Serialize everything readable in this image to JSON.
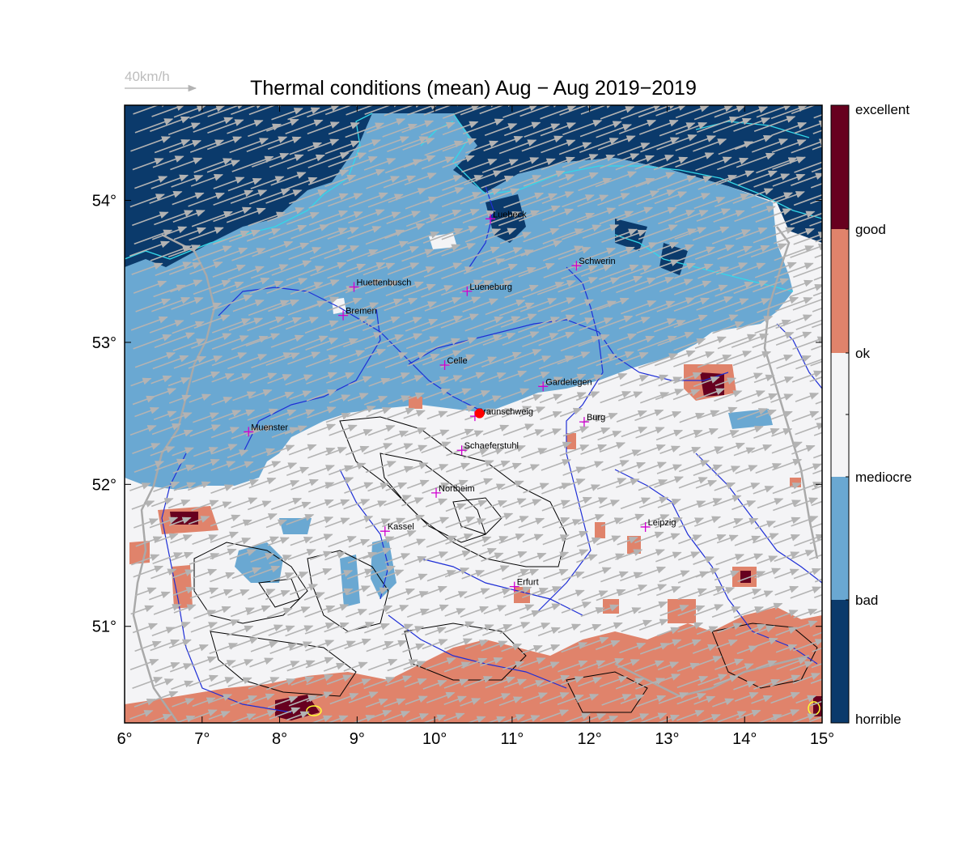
{
  "title": "Thermal conditions (mean) Aug − Aug  2019−2019",
  "scale_arrow_label": "40km/h",
  "map": {
    "lon_range": [
      6,
      15
    ],
    "lat_range": [
      50.32,
      54.67
    ],
    "lon_ticks": [
      {
        "value": 6,
        "label": "6°"
      },
      {
        "value": 7,
        "label": "7°"
      },
      {
        "value": 8,
        "label": "8°"
      },
      {
        "value": 9,
        "label": "9°"
      },
      {
        "value": 10,
        "label": "10°"
      },
      {
        "value": 11,
        "label": "11°"
      },
      {
        "value": 12,
        "label": "12°"
      },
      {
        "value": 13,
        "label": "13°"
      },
      {
        "value": 14,
        "label": "14°"
      },
      {
        "value": 15,
        "label": "15°"
      }
    ],
    "lat_ticks": [
      {
        "value": 51,
        "label": "51°"
      },
      {
        "value": 52,
        "label": "52°"
      },
      {
        "value": 53,
        "label": "53°"
      },
      {
        "value": 54,
        "label": "54°"
      }
    ],
    "cities": [
      {
        "name": "Luebeck",
        "lon": 10.72,
        "lat": 53.87
      },
      {
        "name": "Schwerin",
        "lon": 11.83,
        "lat": 53.54
      },
      {
        "name": "Huettenbusch",
        "lon": 8.96,
        "lat": 53.39
      },
      {
        "name": "Lueneburg",
        "lon": 10.42,
        "lat": 53.36
      },
      {
        "name": "Bremen",
        "lon": 8.82,
        "lat": 53.19
      },
      {
        "name": "Celle",
        "lon": 10.13,
        "lat": 52.84
      },
      {
        "name": "Gardelegen",
        "lon": 11.4,
        "lat": 52.69
      },
      {
        "name": "Braunschweig",
        "lon": 10.52,
        "lat": 52.48
      },
      {
        "name": "Burg",
        "lon": 11.93,
        "lat": 52.44
      },
      {
        "name": "Muenster",
        "lon": 7.6,
        "lat": 52.37
      },
      {
        "name": "Schaeferstuhl",
        "lon": 10.35,
        "lat": 52.24
      },
      {
        "name": "Northeim",
        "lon": 10.02,
        "lat": 51.94
      },
      {
        "name": "Kassel",
        "lon": 9.36,
        "lat": 51.67
      },
      {
        "name": "Leipzig",
        "lon": 12.72,
        "lat": 51.7
      },
      {
        "name": "Erfurt",
        "lon": 11.03,
        "lat": 51.28
      }
    ],
    "launch_site": {
      "lon": 10.58,
      "lat": 52.5
    },
    "wind": {
      "direction_deg_from": 250,
      "speed_kmh_typical": 20
    }
  },
  "colorbar": {
    "labels": [
      "excellent",
      "good",
      "ok",
      "mediocre",
      "bad",
      "horrible"
    ],
    "classes": [
      {
        "name": "excellent",
        "color": "#67001f"
      },
      {
        "name": "good",
        "color": "#e0836b"
      },
      {
        "name": "ok",
        "color": "#f4f4f6"
      },
      {
        "name": "mediocre",
        "color": "#f4f4f6"
      },
      {
        "name": "bad",
        "color": "#6aa8d2"
      },
      {
        "name": "horrible",
        "color": "#0b3a6b"
      }
    ]
  },
  "colors": {
    "horrible": "#0b3a6b",
    "bad": "#6aa8d2",
    "mediocre_ok": "#f4f4f6",
    "good": "#e0836b",
    "excellent": "#67001f",
    "arrows": "#b3b3b3",
    "rivers": "#1f2fd6",
    "coast": "#34d8e8",
    "border": "#a9a9a9",
    "city_marker": "#d000d0",
    "launch_site": "#ff0000",
    "contours": "#000000"
  }
}
